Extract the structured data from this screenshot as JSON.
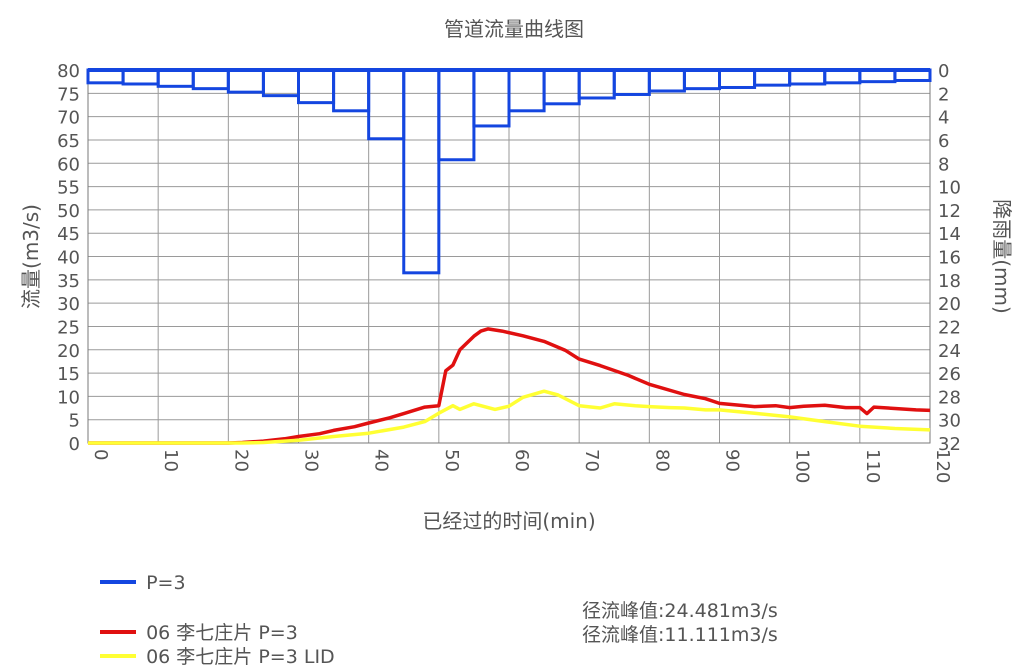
{
  "chart_data": {
    "type": "line",
    "title": "管道流量曲线图",
    "xlabel": "已经过的时间(min)",
    "ylabel_left": "流量(m3/s)",
    "ylabel_right": "降雨量(mm)",
    "xlim": [
      0,
      120
    ],
    "ylim_left": [
      0,
      80
    ],
    "ylim_right_inverted": [
      0,
      32
    ],
    "grid": true,
    "x_ticks": [
      "0",
      "10",
      "20",
      "30",
      "40",
      "50",
      "60",
      "70",
      "80",
      "90",
      "100",
      "110",
      "120"
    ],
    "y_left_ticks": [
      "0",
      "5",
      "10",
      "15",
      "20",
      "25",
      "30",
      "35",
      "40",
      "45",
      "50",
      "55",
      "60",
      "65",
      "70",
      "75",
      "80"
    ],
    "y_right_ticks": [
      "0",
      "2",
      "4",
      "6",
      "8",
      "10",
      "12",
      "14",
      "16",
      "18",
      "20",
      "22",
      "24",
      "26",
      "28",
      "30",
      "32"
    ],
    "rain": {
      "name": "P=3",
      "color": "#1446e0",
      "bin_width_min": 5,
      "x_start": [
        0,
        5,
        10,
        15,
        20,
        25,
        30,
        35,
        40,
        45,
        50,
        55,
        60,
        65,
        70,
        75,
        80,
        85,
        90,
        95,
        100,
        105,
        110,
        115
      ],
      "values_mm": [
        1.1,
        1.2,
        1.4,
        1.6,
        1.9,
        2.2,
        2.8,
        3.5,
        5.9,
        17.4,
        7.7,
        4.8,
        3.5,
        2.9,
        2.4,
        2.1,
        1.8,
        1.6,
        1.5,
        1.3,
        1.2,
        1.1,
        1.0,
        0.9
      ]
    },
    "series": [
      {
        "name": "06 李七庄片 P=3",
        "color": "#e01010",
        "peak_label": "径流峰值:24.481m3/s",
        "x": [
          0,
          20,
          22,
          25,
          28,
          30,
          33,
          35,
          38,
          40,
          43,
          45,
          48,
          50,
          51,
          52,
          53,
          55,
          56,
          57,
          59,
          62,
          65,
          68,
          70,
          73,
          77,
          80,
          85,
          88,
          90,
          95,
          98,
          100,
          102,
          105,
          108,
          110,
          111,
          112,
          115,
          118,
          120
        ],
        "values": [
          0,
          0,
          0.1,
          0.4,
          0.9,
          1.4,
          2.0,
          2.7,
          3.5,
          4.3,
          5.4,
          6.3,
          7.7,
          8.0,
          15.5,
          16.7,
          20.0,
          22.9,
          24.0,
          24.48,
          24.0,
          23.0,
          21.8,
          19.9,
          18.0,
          16.6,
          14.5,
          12.6,
          10.4,
          9.5,
          8.5,
          7.8,
          8.0,
          7.6,
          7.9,
          8.1,
          7.6,
          7.6,
          6.3,
          7.7,
          7.4,
          7.1,
          7.0
        ]
      },
      {
        "name": "06 李七庄片 P=3 LID",
        "color": "#ffff33",
        "peak_label": "径流峰值:11.111m3/s",
        "x": [
          0,
          22,
          25,
          30,
          35,
          40,
          45,
          48,
          50,
          52,
          53,
          55,
          58,
          60,
          62,
          65,
          67,
          70,
          73,
          75,
          78,
          80,
          83,
          85,
          88,
          90,
          95,
          100,
          105,
          110,
          115,
          120
        ],
        "values": [
          0,
          0,
          0.1,
          0.6,
          1.4,
          2.1,
          3.4,
          4.6,
          6.4,
          8.0,
          7.2,
          8.4,
          7.2,
          7.9,
          9.8,
          11.11,
          10.3,
          8.0,
          7.5,
          8.4,
          8.0,
          7.8,
          7.6,
          7.5,
          7.1,
          7.1,
          6.4,
          5.6,
          4.6,
          3.6,
          3.1,
          2.8
        ]
      }
    ],
    "legend_position": "bottom-left"
  },
  "legend": {
    "rain_label": "P=3",
    "series1_label": "06 李七庄片 P=3",
    "series2_label": "06 李七庄片 P=3 LID",
    "series1_peak": "径流峰值:24.481m3/s",
    "series2_peak": "径流峰值:11.111m3/s"
  }
}
